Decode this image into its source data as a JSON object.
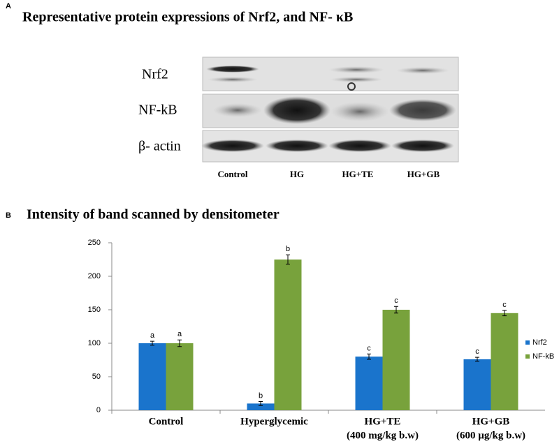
{
  "panel_a": {
    "label": "A",
    "title": "Representative protein expressions of Nrf2, and NF- κB",
    "rows": [
      "Nrf2",
      "NF-kB",
      "β- actin"
    ],
    "lanes": [
      "Control",
      "HG",
      "HG+TE",
      "HG+GB"
    ]
  },
  "chart_data": {
    "type": "bar",
    "panel_label": "B",
    "title": "Intensity of band scanned by densitometer",
    "categories": [
      "Control",
      "Hyperglycemic",
      "HG+TE",
      "HG+GB"
    ],
    "category_notes": [
      null,
      null,
      "(400 mg/kg b.w)",
      "(600 µg/kg b.w)"
    ],
    "series": [
      {
        "name": "Nrf2",
        "color": "#1a74cc",
        "values": [
          100,
          10,
          80,
          76
        ],
        "errors": [
          3,
          3,
          4,
          3
        ],
        "letters": [
          "a",
          "b",
          "c",
          "c"
        ]
      },
      {
        "name": "NF-kB",
        "color": "#78a23c",
        "values": [
          100,
          225,
          150,
          145
        ],
        "errors": [
          5,
          7,
          5,
          4
        ],
        "letters": [
          "a",
          "b",
          "c",
          "c"
        ]
      }
    ],
    "ylim": [
      0,
      250
    ],
    "yticks": [
      0,
      50,
      100,
      150,
      200,
      250
    ],
    "grid": false,
    "legend": "right"
  }
}
